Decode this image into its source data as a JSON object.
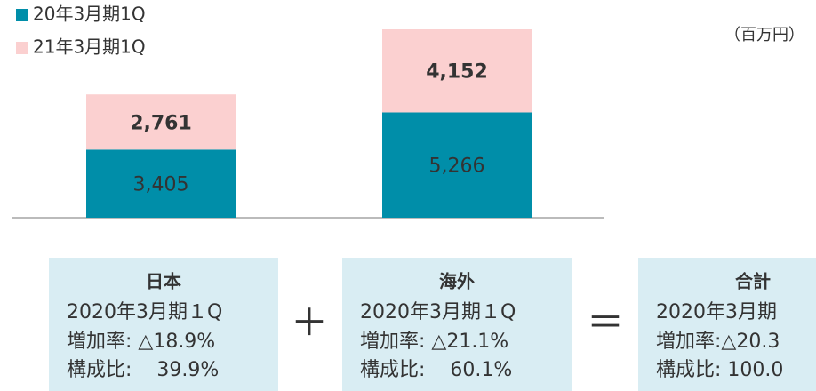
{
  "chart_data": {
    "type": "stacked_bar",
    "unit": "（百万円）",
    "categories": [
      null,
      null
    ],
    "series": [
      {
        "name": "20年3月期1Q",
        "color": "#008ea9",
        "values": [
          3405,
          5266
        ]
      },
      {
        "name": "21年3月期1Q",
        "color": "#fbd0d0",
        "values": [
          2761,
          4152
        ]
      }
    ]
  },
  "boxes": [
    {
      "title": "日本",
      "period": "2020年3月期１Q",
      "rows": [
        "増加率: △18.9%",
        "構成比:    39.9%"
      ]
    },
    {
      "title": "海外",
      "period": "2020年3月期１Q",
      "rows": [
        "増加率: △21.1%",
        "構成比:    60.1%"
      ]
    },
    {
      "title": "合計",
      "period": "2020年3月期",
      "rows": [
        "増加率:△20.3",
        "構成比: 100.0"
      ]
    }
  ],
  "operators": [
    "＋",
    "＝"
  ]
}
